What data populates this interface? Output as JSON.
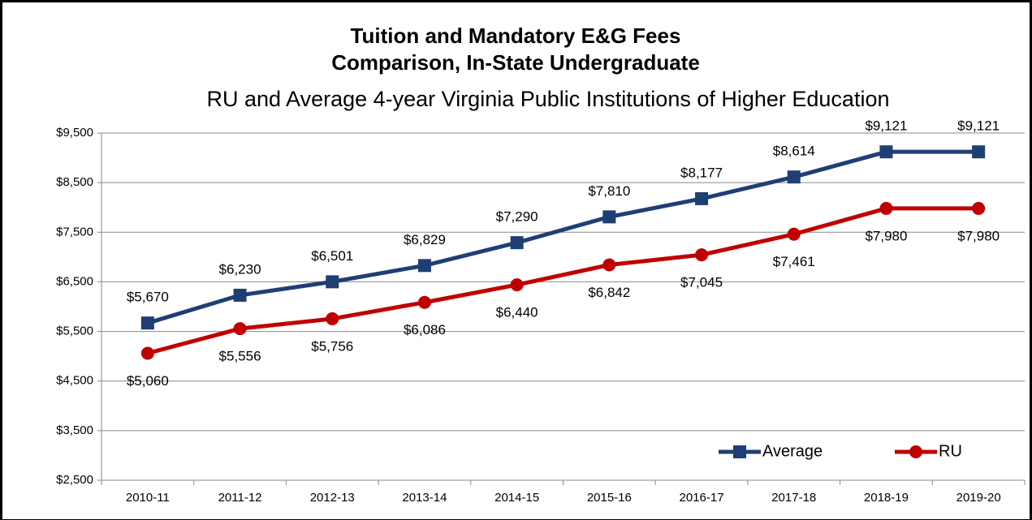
{
  "chart_data": {
    "type": "line",
    "title": [
      "Tuition and Mandatory E&G Fees",
      "Comparison, In-State Undergraduate"
    ],
    "subtitle": "RU and Average 4-year Virginia Public Institutions of Higher Education",
    "categories": [
      "2010-11",
      "2011-12",
      "2012-13",
      "2013-14",
      "2014-15",
      "2015-16",
      "2016-17",
      "2017-18",
      "2018-19",
      "2019-20"
    ],
    "series": [
      {
        "name": "Average",
        "color": "#1f3f74",
        "marker": "square",
        "values": [
          5670,
          6230,
          6501,
          6829,
          7290,
          7810,
          8177,
          8614,
          9121,
          9121
        ],
        "value_labels": [
          "$5,670",
          "$6,230",
          "$6,501",
          "$6,829",
          "$7,290",
          "$7,810",
          "$8,177",
          "$8,614",
          "$9,121",
          "$9,121"
        ]
      },
      {
        "name": "RU",
        "color": "#c00000",
        "marker": "circle",
        "values": [
          5060,
          5556,
          5756,
          6086,
          6440,
          6842,
          7045,
          7461,
          7980,
          7980
        ],
        "value_labels": [
          "$5,060",
          "$5,556",
          "$5,756",
          "$6,086",
          "$6,440",
          "$6,842",
          "$7,045",
          "$7,461",
          "$7,980",
          "$7,980"
        ]
      }
    ],
    "ylim": [
      2500,
      9500
    ],
    "yticks": [
      {
        "value": 2500,
        "label": "$2,500"
      },
      {
        "value": 3500,
        "label": "$3,500"
      },
      {
        "value": 4500,
        "label": "$4,500"
      },
      {
        "value": 5500,
        "label": "$5,500"
      },
      {
        "value": 6500,
        "label": "$6,500"
      },
      {
        "value": 7500,
        "label": "$7,500"
      },
      {
        "value": 8500,
        "label": "$8,500"
      },
      {
        "value": 9500,
        "label": "$9,500"
      }
    ],
    "grid": true,
    "legend": "lower right"
  }
}
